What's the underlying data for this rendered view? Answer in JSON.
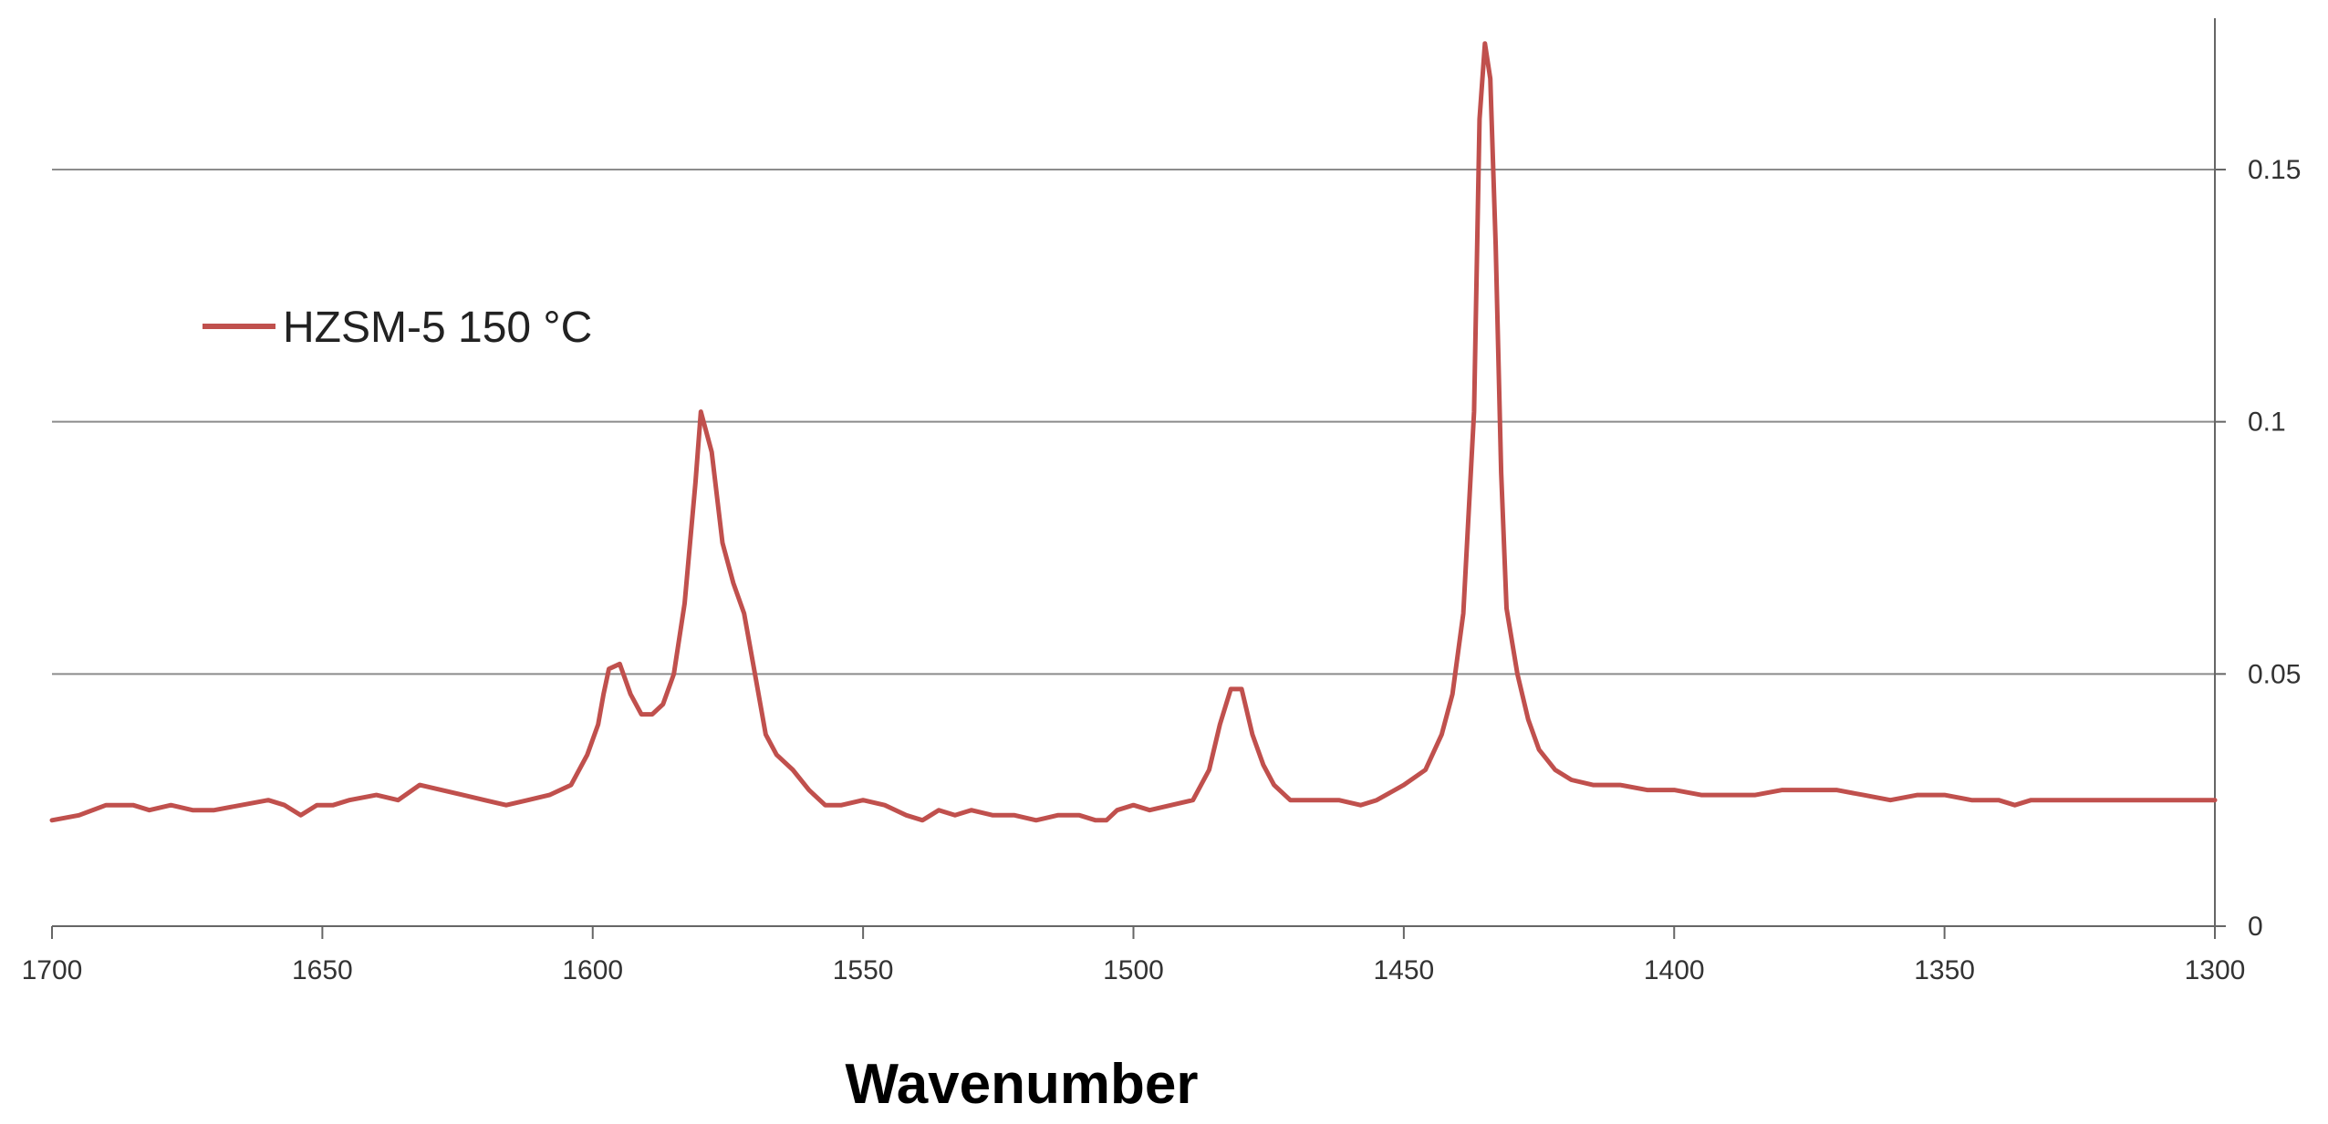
{
  "chart_data": {
    "type": "line",
    "title": "",
    "xlabel": "Wavenumber",
    "ylabel": "",
    "xlim": [
      1700,
      1300
    ],
    "ylim": [
      0,
      0.18
    ],
    "x_reversed": true,
    "x_ticks": [
      1700,
      1650,
      1600,
      1550,
      1500,
      1450,
      1400,
      1350,
      1300
    ],
    "x_tick_labels": [
      "1700",
      "1650",
      "1600",
      "1550",
      "1500",
      "1450",
      "1400",
      "1350",
      "1300"
    ],
    "y_ticks": [
      0,
      0.05,
      0.1,
      0.15
    ],
    "y_tick_labels": [
      "0",
      "0.05",
      "0.1",
      "0.15"
    ],
    "y_axis_side": "right",
    "grid": "horizontal",
    "legend_position": "top-left",
    "series": [
      {
        "name": "HZSM-5 150 °C",
        "color": "#c0504d",
        "points": [
          [
            1700,
            0.021
          ],
          [
            1695,
            0.022
          ],
          [
            1690,
            0.024
          ],
          [
            1685,
            0.024
          ],
          [
            1682,
            0.023
          ],
          [
            1678,
            0.024
          ],
          [
            1674,
            0.023
          ],
          [
            1670,
            0.023
          ],
          [
            1665,
            0.024
          ],
          [
            1660,
            0.025
          ],
          [
            1657,
            0.024
          ],
          [
            1654,
            0.022
          ],
          [
            1651,
            0.024
          ],
          [
            1648,
            0.024
          ],
          [
            1645,
            0.025
          ],
          [
            1640,
            0.026
          ],
          [
            1636,
            0.025
          ],
          [
            1632,
            0.028
          ],
          [
            1628,
            0.027
          ],
          [
            1624,
            0.026
          ],
          [
            1620,
            0.025
          ],
          [
            1616,
            0.024
          ],
          [
            1612,
            0.025
          ],
          [
            1608,
            0.026
          ],
          [
            1604,
            0.028
          ],
          [
            1601,
            0.034
          ],
          [
            1599,
            0.04
          ],
          [
            1598,
            0.046
          ],
          [
            1597,
            0.051
          ],
          [
            1595,
            0.052
          ],
          [
            1593,
            0.046
          ],
          [
            1591,
            0.042
          ],
          [
            1589,
            0.042
          ],
          [
            1587,
            0.044
          ],
          [
            1585,
            0.05
          ],
          [
            1583,
            0.064
          ],
          [
            1581,
            0.088
          ],
          [
            1580,
            0.102
          ],
          [
            1578,
            0.094
          ],
          [
            1576,
            0.076
          ],
          [
            1574,
            0.068
          ],
          [
            1572,
            0.062
          ],
          [
            1570,
            0.05
          ],
          [
            1568,
            0.038
          ],
          [
            1566,
            0.034
          ],
          [
            1563,
            0.031
          ],
          [
            1560,
            0.027
          ],
          [
            1557,
            0.024
          ],
          [
            1554,
            0.024
          ],
          [
            1550,
            0.025
          ],
          [
            1546,
            0.024
          ],
          [
            1542,
            0.022
          ],
          [
            1539,
            0.021
          ],
          [
            1536,
            0.023
          ],
          [
            1533,
            0.022
          ],
          [
            1530,
            0.023
          ],
          [
            1526,
            0.022
          ],
          [
            1522,
            0.022
          ],
          [
            1518,
            0.021
          ],
          [
            1514,
            0.022
          ],
          [
            1510,
            0.022
          ],
          [
            1507,
            0.021
          ],
          [
            1505,
            0.021
          ],
          [
            1503,
            0.023
          ],
          [
            1500,
            0.024
          ],
          [
            1497,
            0.023
          ],
          [
            1493,
            0.024
          ],
          [
            1489,
            0.025
          ],
          [
            1486,
            0.031
          ],
          [
            1484,
            0.04
          ],
          [
            1482,
            0.047
          ],
          [
            1480,
            0.047
          ],
          [
            1478,
            0.038
          ],
          [
            1476,
            0.032
          ],
          [
            1474,
            0.028
          ],
          [
            1471,
            0.025
          ],
          [
            1467,
            0.025
          ],
          [
            1462,
            0.025
          ],
          [
            1458,
            0.024
          ],
          [
            1455,
            0.025
          ],
          [
            1450,
            0.028
          ],
          [
            1446,
            0.031
          ],
          [
            1443,
            0.038
          ],
          [
            1441,
            0.046
          ],
          [
            1439,
            0.062
          ],
          [
            1437,
            0.102
          ],
          [
            1436,
            0.16
          ],
          [
            1435,
            0.175
          ],
          [
            1434,
            0.168
          ],
          [
            1433,
            0.135
          ],
          [
            1432,
            0.09
          ],
          [
            1431,
            0.063
          ],
          [
            1429,
            0.05
          ],
          [
            1427,
            0.041
          ],
          [
            1425,
            0.035
          ],
          [
            1422,
            0.031
          ],
          [
            1419,
            0.029
          ],
          [
            1415,
            0.028
          ],
          [
            1410,
            0.028
          ],
          [
            1405,
            0.027
          ],
          [
            1400,
            0.027
          ],
          [
            1395,
            0.026
          ],
          [
            1390,
            0.026
          ],
          [
            1385,
            0.026
          ],
          [
            1380,
            0.027
          ],
          [
            1375,
            0.027
          ],
          [
            1370,
            0.027
          ],
          [
            1365,
            0.026
          ],
          [
            1360,
            0.025
          ],
          [
            1355,
            0.026
          ],
          [
            1350,
            0.026
          ],
          [
            1345,
            0.025
          ],
          [
            1340,
            0.025
          ],
          [
            1337,
            0.024
          ],
          [
            1334,
            0.025
          ],
          [
            1330,
            0.025
          ],
          [
            1325,
            0.025
          ],
          [
            1320,
            0.025
          ],
          [
            1315,
            0.025
          ],
          [
            1310,
            0.025
          ],
          [
            1305,
            0.025
          ],
          [
            1300,
            0.025
          ]
        ]
      }
    ]
  }
}
